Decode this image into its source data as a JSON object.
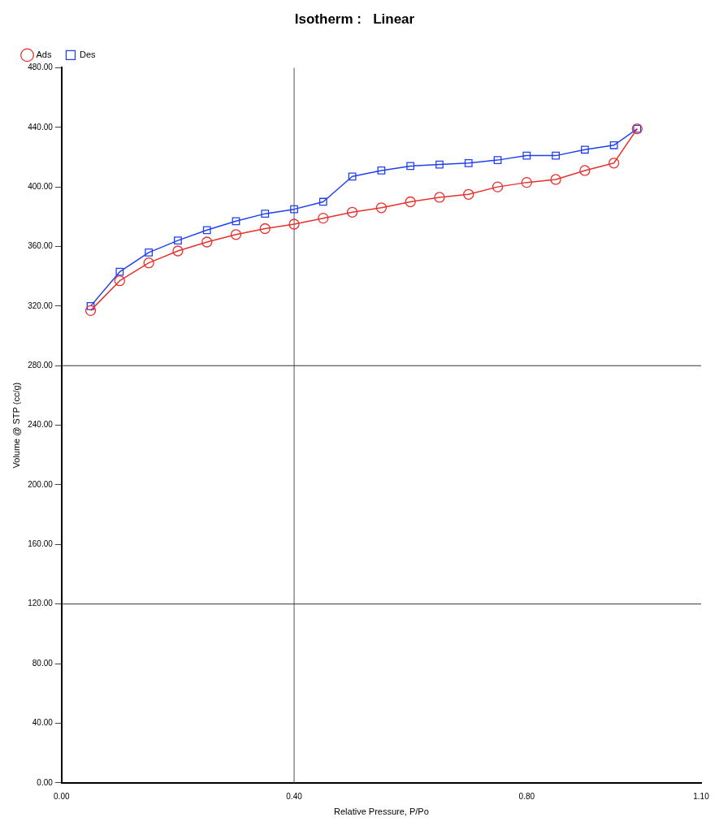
{
  "chart_data": {
    "type": "line",
    "title": "Isotherm :   Linear",
    "xlabel": "Relative Pressure, P/Po",
    "ylabel": "Volume @ STP (cc/g)",
    "x": [
      0.05,
      0.1,
      0.15,
      0.2,
      0.25,
      0.3,
      0.35,
      0.4,
      0.45,
      0.5,
      0.55,
      0.6,
      0.65,
      0.7,
      0.75,
      0.8,
      0.85,
      0.9,
      0.95,
      0.99
    ],
    "series": [
      {
        "name": "Ads",
        "color": "#e8302c",
        "marker": "circle",
        "values": [
          317,
          337,
          349,
          357,
          363,
          368,
          372,
          375,
          379,
          383,
          386,
          390,
          393,
          395,
          400,
          403,
          405,
          411,
          416,
          439
        ]
      },
      {
        "name": "Des",
        "color": "#2040f0",
        "marker": "square",
        "values": [
          320,
          343,
          356,
          364,
          371,
          377,
          382,
          385,
          390,
          407,
          411,
          414,
          415,
          416,
          418,
          421,
          421,
          425,
          428,
          439
        ]
      }
    ],
    "xlim": [
      0,
      1.1
    ],
    "xticks": [
      {
        "value": 0,
        "label": "0.00"
      },
      {
        "value": 0.4,
        "label": "0.40"
      },
      {
        "value": 0.8,
        "label": "0.80"
      },
      {
        "value": 1.1,
        "label": "1.10"
      }
    ],
    "ylim": [
      0,
      480
    ],
    "yticks": [
      {
        "value": 0,
        "label": "0.00"
      },
      {
        "value": 40,
        "label": "40.00"
      },
      {
        "value": 80,
        "label": "80.00"
      },
      {
        "value": 120,
        "label": "120.00"
      },
      {
        "value": 160,
        "label": "160.00"
      },
      {
        "value": 200,
        "label": "200.00"
      },
      {
        "value": 240,
        "label": "240.00"
      },
      {
        "value": 280,
        "label": "280.00"
      },
      {
        "value": 320,
        "label": "320.00"
      },
      {
        "value": 360,
        "label": "360.00"
      },
      {
        "value": 400,
        "label": "400.00"
      },
      {
        "value": 440,
        "label": "440.00"
      },
      {
        "value": 480,
        "label": "480.00"
      }
    ],
    "ref_lines": [
      {
        "axis": "x",
        "value": 0.4,
        "color": "#555555"
      },
      {
        "axis": "y",
        "value": 280,
        "color": "#333333"
      },
      {
        "axis": "y",
        "value": 120,
        "color": "#333333"
      }
    ],
    "legend": "top left",
    "grid": false,
    "line_style": "solid"
  }
}
